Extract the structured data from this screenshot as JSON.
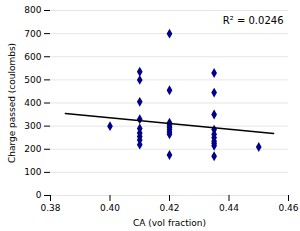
{
  "chart_data": {
    "type": "scatter",
    "xlabel": "CA (vol fraction)",
    "ylabel": "Charge passed (coulombs)",
    "annotation": "R² = 0.0246",
    "xlim": [
      0.38,
      0.46
    ],
    "ylim": [
      0,
      800
    ],
    "xticks": [
      0.38,
      {
        "value": 0.4,
        "label": "0.40"
      },
      0.42,
      0.44,
      0.46
    ],
    "yticks": [
      0,
      100,
      200,
      300,
      400,
      500,
      600,
      700,
      800
    ],
    "grid": "y",
    "series": [
      {
        "type": "scatter",
        "color": "#00008B",
        "marker": "diamond",
        "x": [
          0.4,
          0.41,
          0.41,
          0.41,
          0.41,
          0.41,
          0.41,
          0.41,
          0.41,
          0.41,
          0.42,
          0.42,
          0.42,
          0.42,
          0.42,
          0.42,
          0.42,
          0.42,
          0.42,
          0.435,
          0.435,
          0.435,
          0.435,
          0.435,
          0.435,
          0.435,
          0.435,
          0.435,
          0.435,
          0.45
        ],
        "values": [
          300,
          535,
          500,
          405,
          330,
          290,
          270,
          255,
          240,
          220,
          700,
          455,
          315,
          305,
          295,
          285,
          275,
          265,
          175,
          530,
          445,
          350,
          285,
          265,
          250,
          235,
          225,
          215,
          170,
          210
        ]
      },
      {
        "type": "line",
        "color": "#000000",
        "x": [
          0.385,
          0.455
        ],
        "values": [
          355,
          268
        ]
      }
    ]
  }
}
